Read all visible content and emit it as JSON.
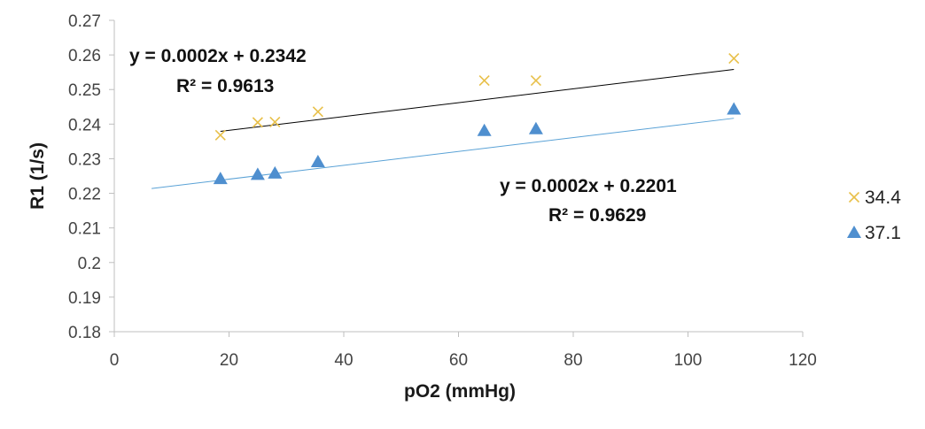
{
  "chart_data": {
    "type": "scatter",
    "title": "",
    "xlabel": "pO2 (mmHg)",
    "ylabel": "R1 (1/s)",
    "xlim": [
      0,
      120
    ],
    "ylim": [
      0.18,
      0.27
    ],
    "x_ticks": [
      0,
      20,
      40,
      60,
      80,
      100,
      120
    ],
    "y_ticks": [
      0.18,
      0.19,
      0.2,
      0.21,
      0.22,
      0.23,
      0.24,
      0.25,
      0.26,
      0.27
    ],
    "x_tick_labels": [
      "0",
      "20",
      "40",
      "60",
      "80",
      "100",
      "120"
    ],
    "y_tick_labels": [
      "0.18",
      "0.19",
      "0.2",
      "0.21",
      "0.22",
      "0.23",
      "0.24",
      "0.25",
      "0.26",
      "0.27"
    ],
    "grid": false,
    "legend_position": "right",
    "series": [
      {
        "name": "34.4",
        "marker": "x",
        "color": "#e8c04a",
        "trend_color": "#000000",
        "points": [
          {
            "x": 18.5,
            "y": 0.2368
          },
          {
            "x": 25.0,
            "y": 0.2405
          },
          {
            "x": 28.0,
            "y": 0.2406
          },
          {
            "x": 35.5,
            "y": 0.2436
          },
          {
            "x": 64.5,
            "y": 0.2526
          },
          {
            "x": 73.5,
            "y": 0.2526
          },
          {
            "x": 108.0,
            "y": 0.259
          }
        ],
        "trendline": {
          "x_start": 18.5,
          "x_end": 108.0,
          "slope": 0.0002,
          "intercept": 0.2342
        },
        "equation": "y = 0.0002x + 0.2342",
        "r_squared": "R² = 0.9613"
      },
      {
        "name": "37.1",
        "marker": "triangle",
        "color": "#4f8fcf",
        "trend_color": "#5aa2d6",
        "points": [
          {
            "x": 18.5,
            "y": 0.2242
          },
          {
            "x": 25.0,
            "y": 0.2254
          },
          {
            "x": 28.0,
            "y": 0.2258
          },
          {
            "x": 35.5,
            "y": 0.2291
          },
          {
            "x": 64.5,
            "y": 0.2381
          },
          {
            "x": 73.5,
            "y": 0.2386
          },
          {
            "x": 108.0,
            "y": 0.2443
          }
        ],
        "trendline": {
          "x_start": 6.5,
          "x_end": 108.0,
          "slope": 0.0002,
          "intercept": 0.2201
        },
        "equation": "y = 0.0002x + 0.2201",
        "r_squared": "R² = 0.9629"
      }
    ]
  }
}
